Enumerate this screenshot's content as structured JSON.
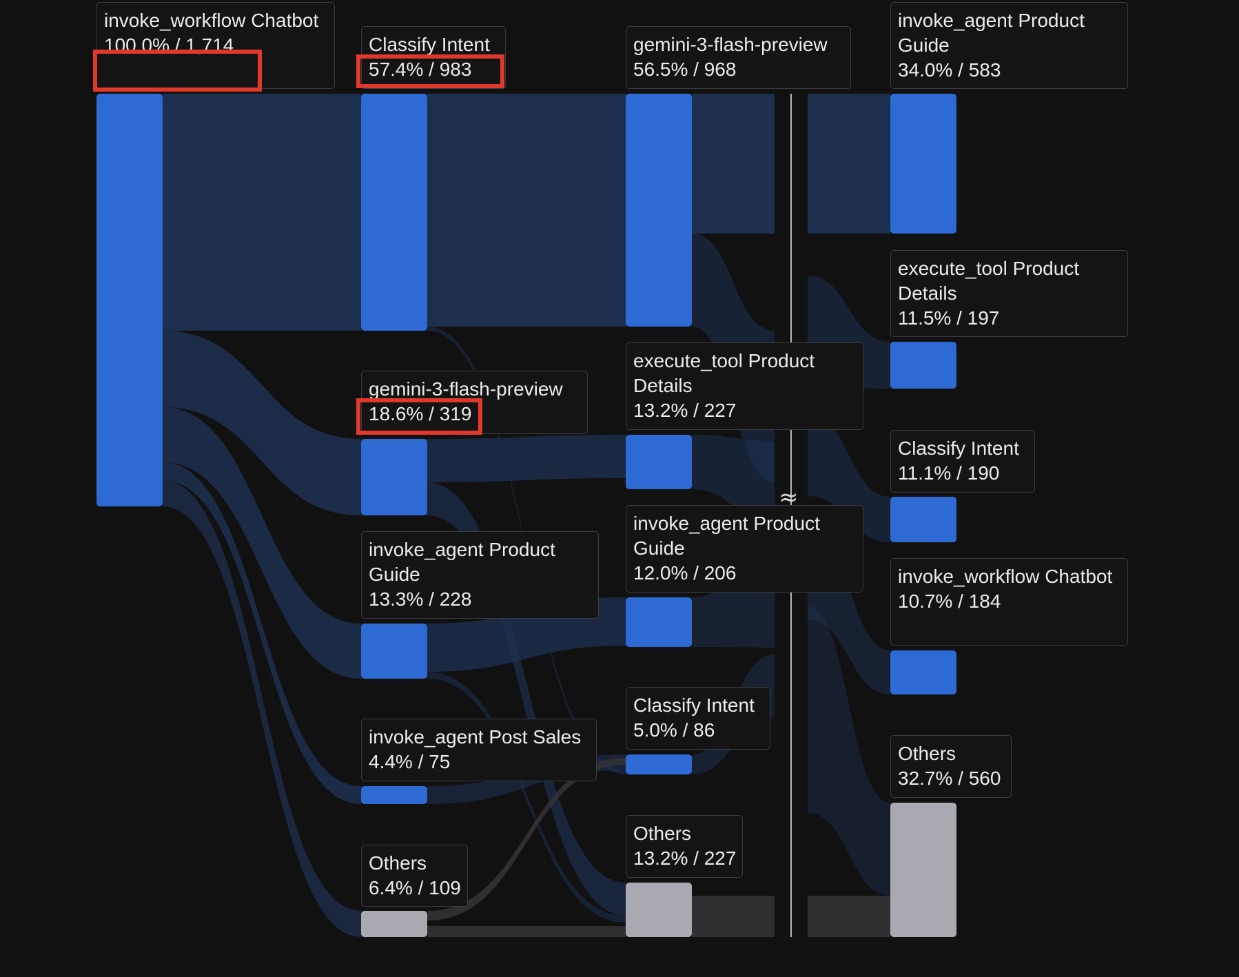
{
  "diagram_type": "sankey",
  "gap_symbol": "≈",
  "colors": {
    "bar_blue": "#2d6ad3",
    "bar_gray": "#a9a9b1",
    "link_blue": "#1e3152",
    "link_gray": "#333335",
    "background": "#111112",
    "highlight": "#e0392b"
  },
  "columns": [
    {
      "nodes": [
        {
          "name": "invoke_workflow Chatbot",
          "stat": "100.0% / 1,714",
          "highlighted": true
        }
      ]
    },
    {
      "nodes": [
        {
          "name": "Classify Intent",
          "stat": "57.4% / 983",
          "highlighted": true
        },
        {
          "name": "gemini-3-flash-preview",
          "stat": "18.6% / 319",
          "highlighted": true
        },
        {
          "name": "invoke_agent Product Guide",
          "stat": "13.3% / 228"
        },
        {
          "name": "invoke_agent Post Sales",
          "stat": "4.4% / 75"
        },
        {
          "name": "Others",
          "stat": "6.4% / 109"
        }
      ]
    },
    {
      "nodes": [
        {
          "name": "gemini-3-flash-preview",
          "stat": "56.5% / 968"
        },
        {
          "name": "execute_tool Product Details",
          "stat": "13.2% / 227"
        },
        {
          "name": "invoke_agent Product Guide",
          "stat": "12.0% / 206"
        },
        {
          "name": "Classify Intent",
          "stat": "5.0% / 86"
        },
        {
          "name": "Others",
          "stat": "13.2% / 227"
        }
      ]
    },
    {
      "nodes": [
        {
          "name": "invoke_agent Product Guide",
          "stat": "34.0% / 583"
        },
        {
          "name": "execute_tool Product Details",
          "stat": "11.5% / 197"
        },
        {
          "name": "Classify Intent",
          "stat": "11.1% / 190"
        },
        {
          "name": "invoke_workflow Chatbot",
          "stat": "10.7% / 184"
        },
        {
          "name": "Others",
          "stat": "32.7% / 560"
        }
      ]
    }
  ]
}
